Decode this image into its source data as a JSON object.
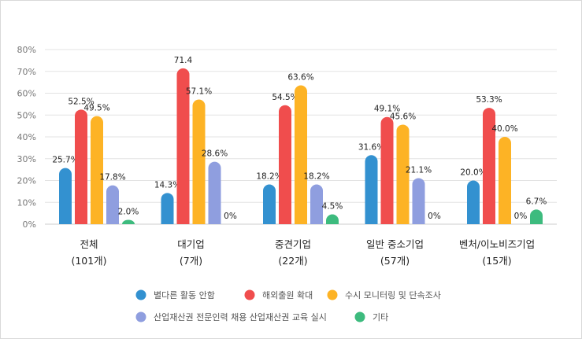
{
  "chart_data": {
    "type": "bar",
    "categories": [
      [
        "전체",
        "(101개)"
      ],
      [
        "대기업",
        "(7개)"
      ],
      [
        "중견기업",
        "(22개)"
      ],
      [
        "일반 중소기업",
        "(57개)"
      ],
      [
        "벤처/이노비즈기업",
        "(15개)"
      ]
    ],
    "ylim": [
      0,
      80
    ],
    "yticks": [
      "0%",
      "10%",
      "20%",
      "30%",
      "40%",
      "50%",
      "60%",
      "70%",
      "80%"
    ],
    "grid": true,
    "legend_position": "bottom",
    "series": [
      {
        "name": "별다른 활동 안함",
        "color": "#3391d0",
        "values": [
          25.7,
          14.3,
          18.2,
          31.6,
          20.0
        ],
        "labels": [
          "25.7%",
          "14.3%",
          "18.2%",
          "31.6%",
          "20.0%"
        ]
      },
      {
        "name": "해외출원 확대",
        "color": "#f04d4d",
        "values": [
          52.5,
          71.4,
          54.5,
          49.1,
          53.3
        ],
        "labels": [
          "52.5%",
          "71.4",
          "54.5%",
          "49.1%",
          "53.3%"
        ]
      },
      {
        "name": "수시 모니터링 및 단속조사",
        "color": "#fdb325",
        "values": [
          49.5,
          57.1,
          63.6,
          45.6,
          40.0
        ],
        "labels": [
          "49.5%",
          "57.1%",
          "63.6%",
          "45.6%",
          "40.0%"
        ]
      },
      {
        "name": "산업재산권 전문인력 채용 산업재산권 교육 실시",
        "color": "#8f9edf",
        "values": [
          17.8,
          28.6,
          18.2,
          21.1,
          0
        ],
        "labels": [
          "17.8%",
          "28.6%",
          "18.2%",
          "21.1%",
          "0%"
        ]
      },
      {
        "name": "기타",
        "color": "#3dbb7e",
        "values": [
          2.0,
          0,
          4.5,
          0,
          6.7
        ],
        "labels": [
          "2.0%",
          "0%",
          "4.5%",
          "0%",
          "6.7%"
        ]
      }
    ]
  }
}
